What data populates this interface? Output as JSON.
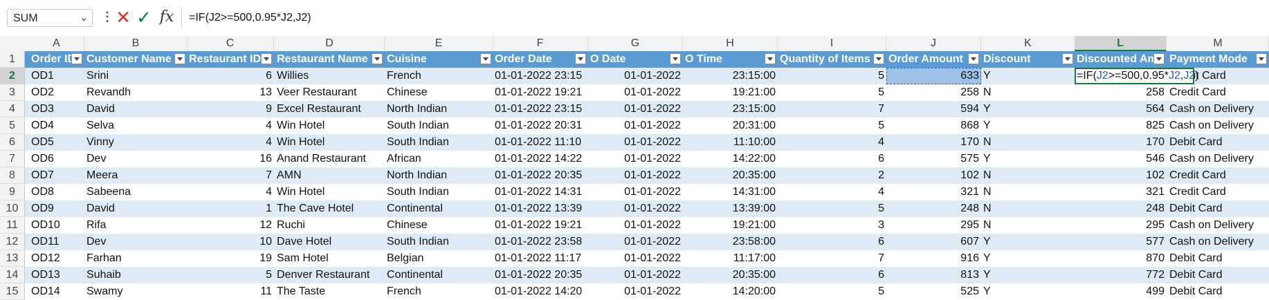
{
  "name_box": {
    "value": "SUM"
  },
  "formula_bar": {
    "value": "=IF(J2>=500,0.95*J2,J2)",
    "fx_label": "fx"
  },
  "column_letters": [
    "A",
    "B",
    "C",
    "D",
    "E",
    "F",
    "G",
    "H",
    "I",
    "J",
    "K",
    "L",
    "M"
  ],
  "headers": [
    "Order ID",
    "Customer Name",
    "Restaurant ID",
    "Restaurant Name",
    "Cuisine",
    "Order Date",
    "O Date",
    "O Time",
    "Quantity of Items",
    "Order Amount",
    "Discount",
    "Discounted Am",
    "Payment Mode"
  ],
  "rows": [
    {
      "n": "2",
      "id": "OD1",
      "cust": "Srini",
      "rid": "6",
      "rname": "Willies",
      "cuisine": "French",
      "odate": "01-01-2022 23:15",
      "d": "01-01-2022",
      "t": "23:15:00",
      "qty": "5",
      "amt": "633",
      "disc": "Y",
      "damt": "",
      "pay": "Credit Card"
    },
    {
      "n": "3",
      "id": "OD2",
      "cust": "Revandh",
      "rid": "13",
      "rname": "Veer Restaurant",
      "cuisine": "Chinese",
      "odate": "01-01-2022 19:21",
      "d": "01-01-2022",
      "t": "19:21:00",
      "qty": "5",
      "amt": "258",
      "disc": "N",
      "damt": "258",
      "pay": "Credit Card"
    },
    {
      "n": "4",
      "id": "OD3",
      "cust": "David",
      "rid": "9",
      "rname": "Excel Restaurant",
      "cuisine": "North Indian",
      "odate": "01-01-2022 23:15",
      "d": "01-01-2022",
      "t": "23:15:00",
      "qty": "7",
      "amt": "594",
      "disc": "Y",
      "damt": "564",
      "pay": "Cash on Delivery"
    },
    {
      "n": "5",
      "id": "OD4",
      "cust": "Selva",
      "rid": "4",
      "rname": "Win Hotel",
      "cuisine": "South Indian",
      "odate": "01-01-2022 20:31",
      "d": "01-01-2022",
      "t": "20:31:00",
      "qty": "5",
      "amt": "868",
      "disc": "Y",
      "damt": "825",
      "pay": "Cash on Delivery"
    },
    {
      "n": "6",
      "id": "OD5",
      "cust": "Vinny",
      "rid": "4",
      "rname": "Win Hotel",
      "cuisine": "South Indian",
      "odate": "01-01-2022 11:10",
      "d": "01-01-2022",
      "t": "11:10:00",
      "qty": "4",
      "amt": "170",
      "disc": "N",
      "damt": "170",
      "pay": "Debit Card"
    },
    {
      "n": "7",
      "id": "OD6",
      "cust": "Dev",
      "rid": "16",
      "rname": "Anand Restaurant",
      "cuisine": "African",
      "odate": "01-01-2022 14:22",
      "d": "01-01-2022",
      "t": "14:22:00",
      "qty": "6",
      "amt": "575",
      "disc": "Y",
      "damt": "546",
      "pay": "Cash on Delivery"
    },
    {
      "n": "8",
      "id": "OD7",
      "cust": "Meera",
      "rid": "7",
      "rname": "AMN",
      "cuisine": "North Indian",
      "odate": "01-01-2022 20:35",
      "d": "01-01-2022",
      "t": "20:35:00",
      "qty": "2",
      "amt": "102",
      "disc": "N",
      "damt": "102",
      "pay": "Credit Card"
    },
    {
      "n": "9",
      "id": "OD8",
      "cust": "Sabeena",
      "rid": "4",
      "rname": "Win Hotel",
      "cuisine": "South Indian",
      "odate": "01-01-2022 14:31",
      "d": "01-01-2022",
      "t": "14:31:00",
      "qty": "4",
      "amt": "321",
      "disc": "N",
      "damt": "321",
      "pay": "Credit Card"
    },
    {
      "n": "10",
      "id": "OD9",
      "cust": "David",
      "rid": "1",
      "rname": "The Cave Hotel",
      "cuisine": "Continental",
      "odate": "01-01-2022 13:39",
      "d": "01-01-2022",
      "t": "13:39:00",
      "qty": "5",
      "amt": "248",
      "disc": "N",
      "damt": "248",
      "pay": "Debit Card"
    },
    {
      "n": "11",
      "id": "OD10",
      "cust": "Rifa",
      "rid": "12",
      "rname": "Ruchi",
      "cuisine": "Chinese",
      "odate": "01-01-2022 19:21",
      "d": "01-01-2022",
      "t": "19:21:00",
      "qty": "3",
      "amt": "295",
      "disc": "N",
      "damt": "295",
      "pay": "Cash on Delivery"
    },
    {
      "n": "12",
      "id": "OD11",
      "cust": "Dev",
      "rid": "10",
      "rname": "Dave Hotel",
      "cuisine": "South Indian",
      "odate": "01-01-2022 23:58",
      "d": "01-01-2022",
      "t": "23:58:00",
      "qty": "6",
      "amt": "607",
      "disc": "Y",
      "damt": "577",
      "pay": "Cash on Delivery"
    },
    {
      "n": "13",
      "id": "OD12",
      "cust": "Farhan",
      "rid": "19",
      "rname": "Sam Hotel",
      "cuisine": "Belgian",
      "odate": "01-01-2022 11:17",
      "d": "01-01-2022",
      "t": "11:17:00",
      "qty": "7",
      "amt": "916",
      "disc": "Y",
      "damt": "870",
      "pay": "Debit Card"
    },
    {
      "n": "14",
      "id": "OD13",
      "cust": "Suhaib",
      "rid": "5",
      "rname": "Denver Restaurant",
      "cuisine": "Continental",
      "odate": "01-01-2022 20:35",
      "d": "01-01-2022",
      "t": "20:35:00",
      "qty": "6",
      "amt": "813",
      "disc": "Y",
      "damt": "772",
      "pay": "Debit Card"
    },
    {
      "n": "15",
      "id": "OD14",
      "cust": "Swamy",
      "rid": "11",
      "rname": "The Taste",
      "cuisine": "French",
      "odate": "01-01-2022 14:20",
      "d": "01-01-2022",
      "t": "14:20:00",
      "qty": "5",
      "amt": "525",
      "disc": "Y",
      "damt": "499",
      "pay": "Debit Card"
    }
  ],
  "l2_edit": {
    "p1": "=IF(",
    "r1": "J2",
    ">=500,0.95*": "",
    "p2": ">=500,0.95*",
    "r2": "J2",
    "p3": ",",
    "r3": "J2",
    "p4": ")"
  },
  "colors": {
    "header_fill": "#5b9bd5",
    "band_fill": "#ddebf7",
    "selection_green": "#107c41"
  }
}
